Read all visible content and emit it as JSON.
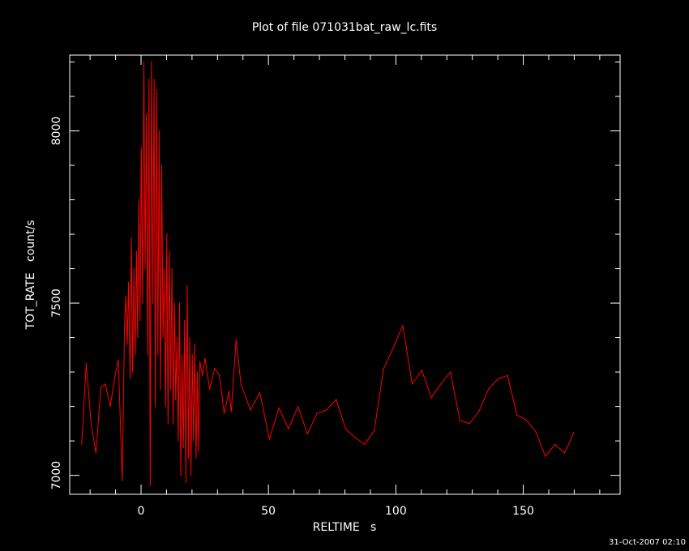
{
  "chart_data": {
    "type": "line",
    "title": "Plot of file 071031bat_raw_lc.fits",
    "xlabel": "RELTIME   s",
    "ylabel": "TOT_RATE   count/s",
    "xlim": [
      -28,
      188
    ],
    "ylim": [
      6945,
      8220
    ],
    "x_ticks": [
      0,
      50,
      100,
      150
    ],
    "x_tick_labels": [
      "0",
      "50",
      "100",
      "150"
    ],
    "y_ticks": [
      7000,
      7500,
      8000
    ],
    "y_tick_labels": [
      "7000",
      "7500",
      "8000"
    ],
    "grid": false,
    "line_color": "#ff0000",
    "series": [
      {
        "values": [
          [
            -23.3,
            7090
          ],
          [
            -21.5,
            7325
          ],
          [
            -19.6,
            7150
          ],
          [
            -17.7,
            7065
          ],
          [
            -15.8,
            7255
          ],
          [
            -14.0,
            7265
          ],
          [
            -12.1,
            7200
          ],
          [
            -10.2,
            7290
          ],
          [
            -8.9,
            7335
          ],
          [
            -7.4,
            6985
          ],
          [
            -6.5,
            7430
          ],
          [
            -6.0,
            7520
          ],
          [
            -5.4,
            7380
          ],
          [
            -4.9,
            7560
          ],
          [
            -4.3,
            7280
          ],
          [
            -3.8,
            7690
          ],
          [
            -3.3,
            7300
          ],
          [
            -2.8,
            7600
          ],
          [
            -2.3,
            7350
          ],
          [
            -1.8,
            7650
          ],
          [
            -1.3,
            7400
          ],
          [
            -0.9,
            7800
          ],
          [
            -0.4,
            7450
          ],
          [
            0.1,
            7950
          ],
          [
            0.6,
            7500
          ],
          [
            1.1,
            8200
          ],
          [
            1.6,
            7600
          ],
          [
            2.1,
            8050
          ],
          [
            2.6,
            7350
          ],
          [
            3.1,
            8150
          ],
          [
            3.6,
            6970
          ],
          [
            4.1,
            8200
          ],
          [
            4.6,
            7500
          ],
          [
            5.1,
            8150
          ],
          [
            5.6,
            7200
          ],
          [
            6.1,
            8120
          ],
          [
            6.6,
            7350
          ],
          [
            7.1,
            8000
          ],
          [
            7.6,
            7250
          ],
          [
            8.1,
            7900
          ],
          [
            8.6,
            7400
          ],
          [
            9.1,
            7600
          ],
          [
            9.6,
            7200
          ],
          [
            10.1,
            7700
          ],
          [
            10.6,
            7150
          ],
          [
            11.1,
            7650
          ],
          [
            11.6,
            7250
          ],
          [
            12.1,
            7600
          ],
          [
            12.6,
            7150
          ],
          [
            13.1,
            7500
          ],
          [
            13.6,
            7220
          ],
          [
            14.1,
            7400
          ],
          [
            14.6,
            7100
          ],
          [
            15.1,
            7500
          ],
          [
            15.6,
            7000
          ],
          [
            16.1,
            7350
          ],
          [
            16.6,
            7080
          ],
          [
            17.1,
            7450
          ],
          [
            17.6,
            6980
          ],
          [
            18.1,
            7550
          ],
          [
            18.6,
            7050
          ],
          [
            19.1,
            7400
          ],
          [
            19.6,
            7000
          ],
          [
            20.1,
            7350
          ],
          [
            20.6,
            7100
          ],
          [
            21.1,
            7380
          ],
          [
            21.6,
            7050
          ],
          [
            22.1,
            7300
          ],
          [
            22.6,
            7070
          ],
          [
            23.1,
            7330
          ],
          [
            24.1,
            7290
          ],
          [
            25.1,
            7340
          ],
          [
            26.9,
            7250
          ],
          [
            28.9,
            7310
          ],
          [
            30.8,
            7290
          ],
          [
            32.6,
            7180
          ],
          [
            34.5,
            7245
          ],
          [
            35.4,
            7185
          ],
          [
            37.3,
            7395
          ],
          [
            39.2,
            7265
          ],
          [
            42.9,
            7190
          ],
          [
            46.6,
            7240
          ],
          [
            50.4,
            7105
          ],
          [
            54.1,
            7195
          ],
          [
            57.9,
            7135
          ],
          [
            61.6,
            7200
          ],
          [
            65.3,
            7120
          ],
          [
            69.1,
            7180
          ],
          [
            72.8,
            7190
          ],
          [
            76.6,
            7220
          ],
          [
            80.3,
            7135
          ],
          [
            84.0,
            7110
          ],
          [
            87.7,
            7090
          ],
          [
            91.5,
            7130
          ],
          [
            95.2,
            7310
          ],
          [
            99.0,
            7370
          ],
          [
            102.7,
            7435
          ],
          [
            106.4,
            7265
          ],
          [
            110.2,
            7305
          ],
          [
            113.9,
            7225
          ],
          [
            117.6,
            7265
          ],
          [
            121.4,
            7300
          ],
          [
            125.1,
            7160
          ],
          [
            128.8,
            7150
          ],
          [
            132.6,
            7185
          ],
          [
            136.3,
            7250
          ],
          [
            140.1,
            7280
          ],
          [
            143.8,
            7290
          ],
          [
            147.5,
            7175
          ],
          [
            151.3,
            7160
          ],
          [
            155.0,
            7125
          ],
          [
            158.7,
            7055
          ],
          [
            162.5,
            7090
          ],
          [
            166.2,
            7065
          ],
          [
            169.9,
            7125
          ]
        ]
      }
    ]
  },
  "timestamp": "31-Oct-2007 02:10"
}
